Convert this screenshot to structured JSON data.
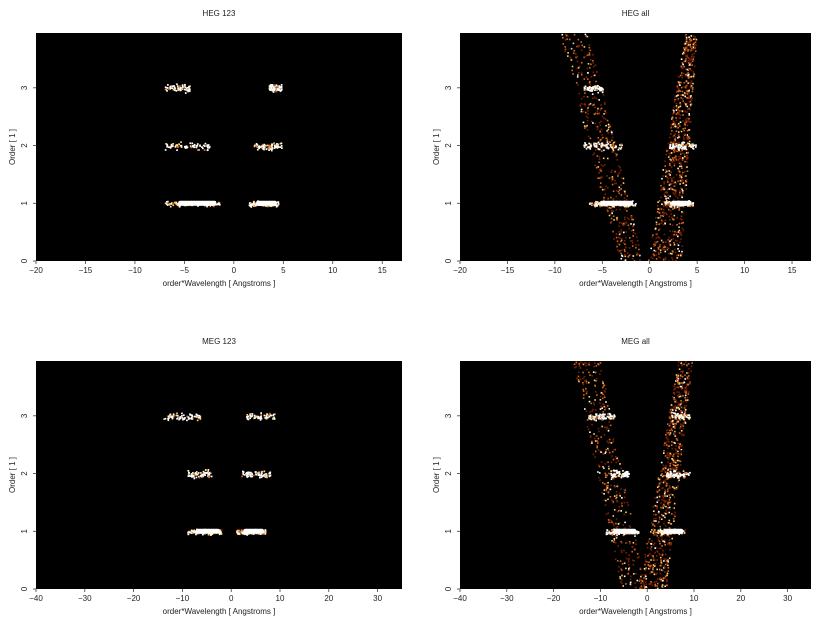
{
  "colors": {
    "background": "#000000",
    "faint": "#7a1e00",
    "mid": "#d2691e",
    "bright": "#ffd070",
    "peak": "#ffffff",
    "axis_text": "#222222"
  },
  "chart_data": [
    {
      "type": "heatmap",
      "title": "HEG 123",
      "xlabel": "order*Wavelength [ Angstroms ]",
      "ylabel": "Order [ 1 ]",
      "xlim": [
        -20,
        17
      ],
      "ylim": [
        0,
        4
      ],
      "xticks": [
        -20,
        -15,
        -10,
        -5,
        0,
        5,
        10,
        15
      ],
      "yticks": [
        0,
        1,
        2,
        3
      ],
      "clusters": [
        {
          "x": [
            -7,
            -1.5
          ],
          "y": 1,
          "intensity": "peak"
        },
        {
          "x": [
            1.5,
            4.5
          ],
          "y": 1,
          "intensity": "peak"
        },
        {
          "x": [
            -7,
            -2.5
          ],
          "y": 2,
          "intensity": "mid"
        },
        {
          "x": [
            2,
            4.8
          ],
          "y": 2,
          "intensity": "mid"
        },
        {
          "x": [
            -7,
            -4.5
          ],
          "y": 3,
          "intensity": "mid"
        },
        {
          "x": [
            3.5,
            4.8
          ],
          "y": 3,
          "intensity": "mid"
        }
      ]
    },
    {
      "type": "heatmap",
      "title": "HEG all",
      "xlabel": "order*Wavelength [ Angstroms ]",
      "ylabel": "Order [ 1 ]",
      "xlim": [
        -20,
        17
      ],
      "ylim": [
        0,
        4
      ],
      "xticks": [
        -20,
        -15,
        -10,
        -5,
        0,
        5,
        10,
        15
      ],
      "yticks": [
        0,
        1,
        2,
        3
      ],
      "clusters": [
        {
          "x": [
            -6.5,
            -1.5
          ],
          "y": 1,
          "intensity": "peak"
        },
        {
          "x": [
            1.5,
            4.5
          ],
          "y": 1,
          "intensity": "peak"
        },
        {
          "x": [
            -7,
            -3
          ],
          "y": 2,
          "intensity": "mid"
        },
        {
          "x": [
            2,
            4.8
          ],
          "y": 2,
          "intensity": "mid"
        },
        {
          "x": [
            -7,
            -5
          ],
          "y": 3,
          "intensity": "mid"
        }
      ],
      "background_wedges": [
        {
          "x_at_y0": -2,
          "x_at_ytop": -8,
          "width_at_y0": 2.5,
          "width_at_ytop": 3,
          "density": 0.5
        },
        {
          "x_at_y0": 1.5,
          "x_at_ytop": 4.3,
          "width_at_y0": 3.5,
          "width_at_ytop": 1.2,
          "density": 0.9
        }
      ]
    },
    {
      "type": "heatmap",
      "title": "MEG 123",
      "xlabel": "order*Wavelength [ Angstroms ]",
      "ylabel": "Order [ 1 ]",
      "xlim": [
        -40,
        35
      ],
      "ylim": [
        0,
        4
      ],
      "xticks": [
        -40,
        -30,
        -20,
        -10,
        0,
        10,
        20,
        30
      ],
      "yticks": [
        0,
        1,
        2,
        3
      ],
      "clusters": [
        {
          "x": [
            -9,
            -2
          ],
          "y": 1,
          "intensity": "peak"
        },
        {
          "x": [
            1,
            7
          ],
          "y": 1,
          "intensity": "peak"
        },
        {
          "x": [
            -9,
            -4
          ],
          "y": 2,
          "intensity": "mid"
        },
        {
          "x": [
            2,
            8
          ],
          "y": 2,
          "intensity": "mid"
        },
        {
          "x": [
            -14,
            -6
          ],
          "y": 3,
          "intensity": "mid"
        },
        {
          "x": [
            3,
            9
          ],
          "y": 3,
          "intensity": "mid"
        }
      ]
    },
    {
      "type": "heatmap",
      "title": "MEG all",
      "xlabel": "order*Wavelength [ Angstroms ]",
      "ylabel": "Order [ 1 ]",
      "xlim": [
        -40,
        35
      ],
      "ylim": [
        0,
        4
      ],
      "xticks": [
        -40,
        -30,
        -20,
        -10,
        0,
        10,
        20,
        30
      ],
      "yticks": [
        0,
        1,
        2,
        3
      ],
      "clusters": [
        {
          "x": [
            -9,
            -2
          ],
          "y": 1,
          "intensity": "peak"
        },
        {
          "x": [
            2,
            8
          ],
          "y": 1,
          "intensity": "peak"
        },
        {
          "x": [
            -8,
            -4
          ],
          "y": 2,
          "intensity": "mid"
        },
        {
          "x": [
            4,
            9
          ],
          "y": 2,
          "intensity": "mid"
        },
        {
          "x": [
            -13,
            -7
          ],
          "y": 3,
          "intensity": "mid"
        },
        {
          "x": [
            5,
            9
          ],
          "y": 3,
          "intensity": "mid"
        }
      ],
      "background_wedges": [
        {
          "x_at_y0": -3,
          "x_at_ytop": -13,
          "width_at_y0": 5,
          "width_at_ytop": 6,
          "density": 0.45
        },
        {
          "x_at_y0": 1,
          "x_at_ytop": 8,
          "width_at_y0": 6,
          "width_at_ytop": 3,
          "density": 0.8
        }
      ]
    }
  ]
}
